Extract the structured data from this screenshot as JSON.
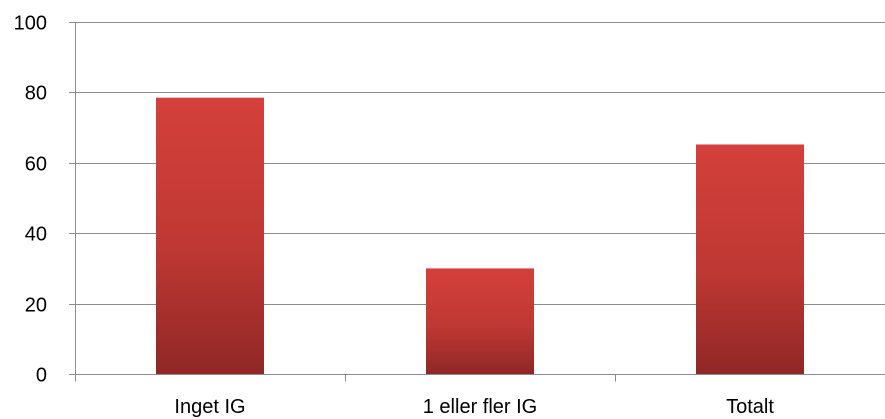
{
  "chart_data": {
    "type": "bar",
    "categories": [
      "Inget IG",
      "1 eller fler IG",
      "Totalt"
    ],
    "series": [
      {
        "values": [
          78.5,
          30,
          65.2
        ]
      }
    ],
    "ylim": [
      0,
      100
    ],
    "yticks": [
      0,
      20,
      40,
      60,
      80,
      100
    ],
    "grid": true,
    "legend": "none",
    "bar_color": "#c43a35"
  }
}
